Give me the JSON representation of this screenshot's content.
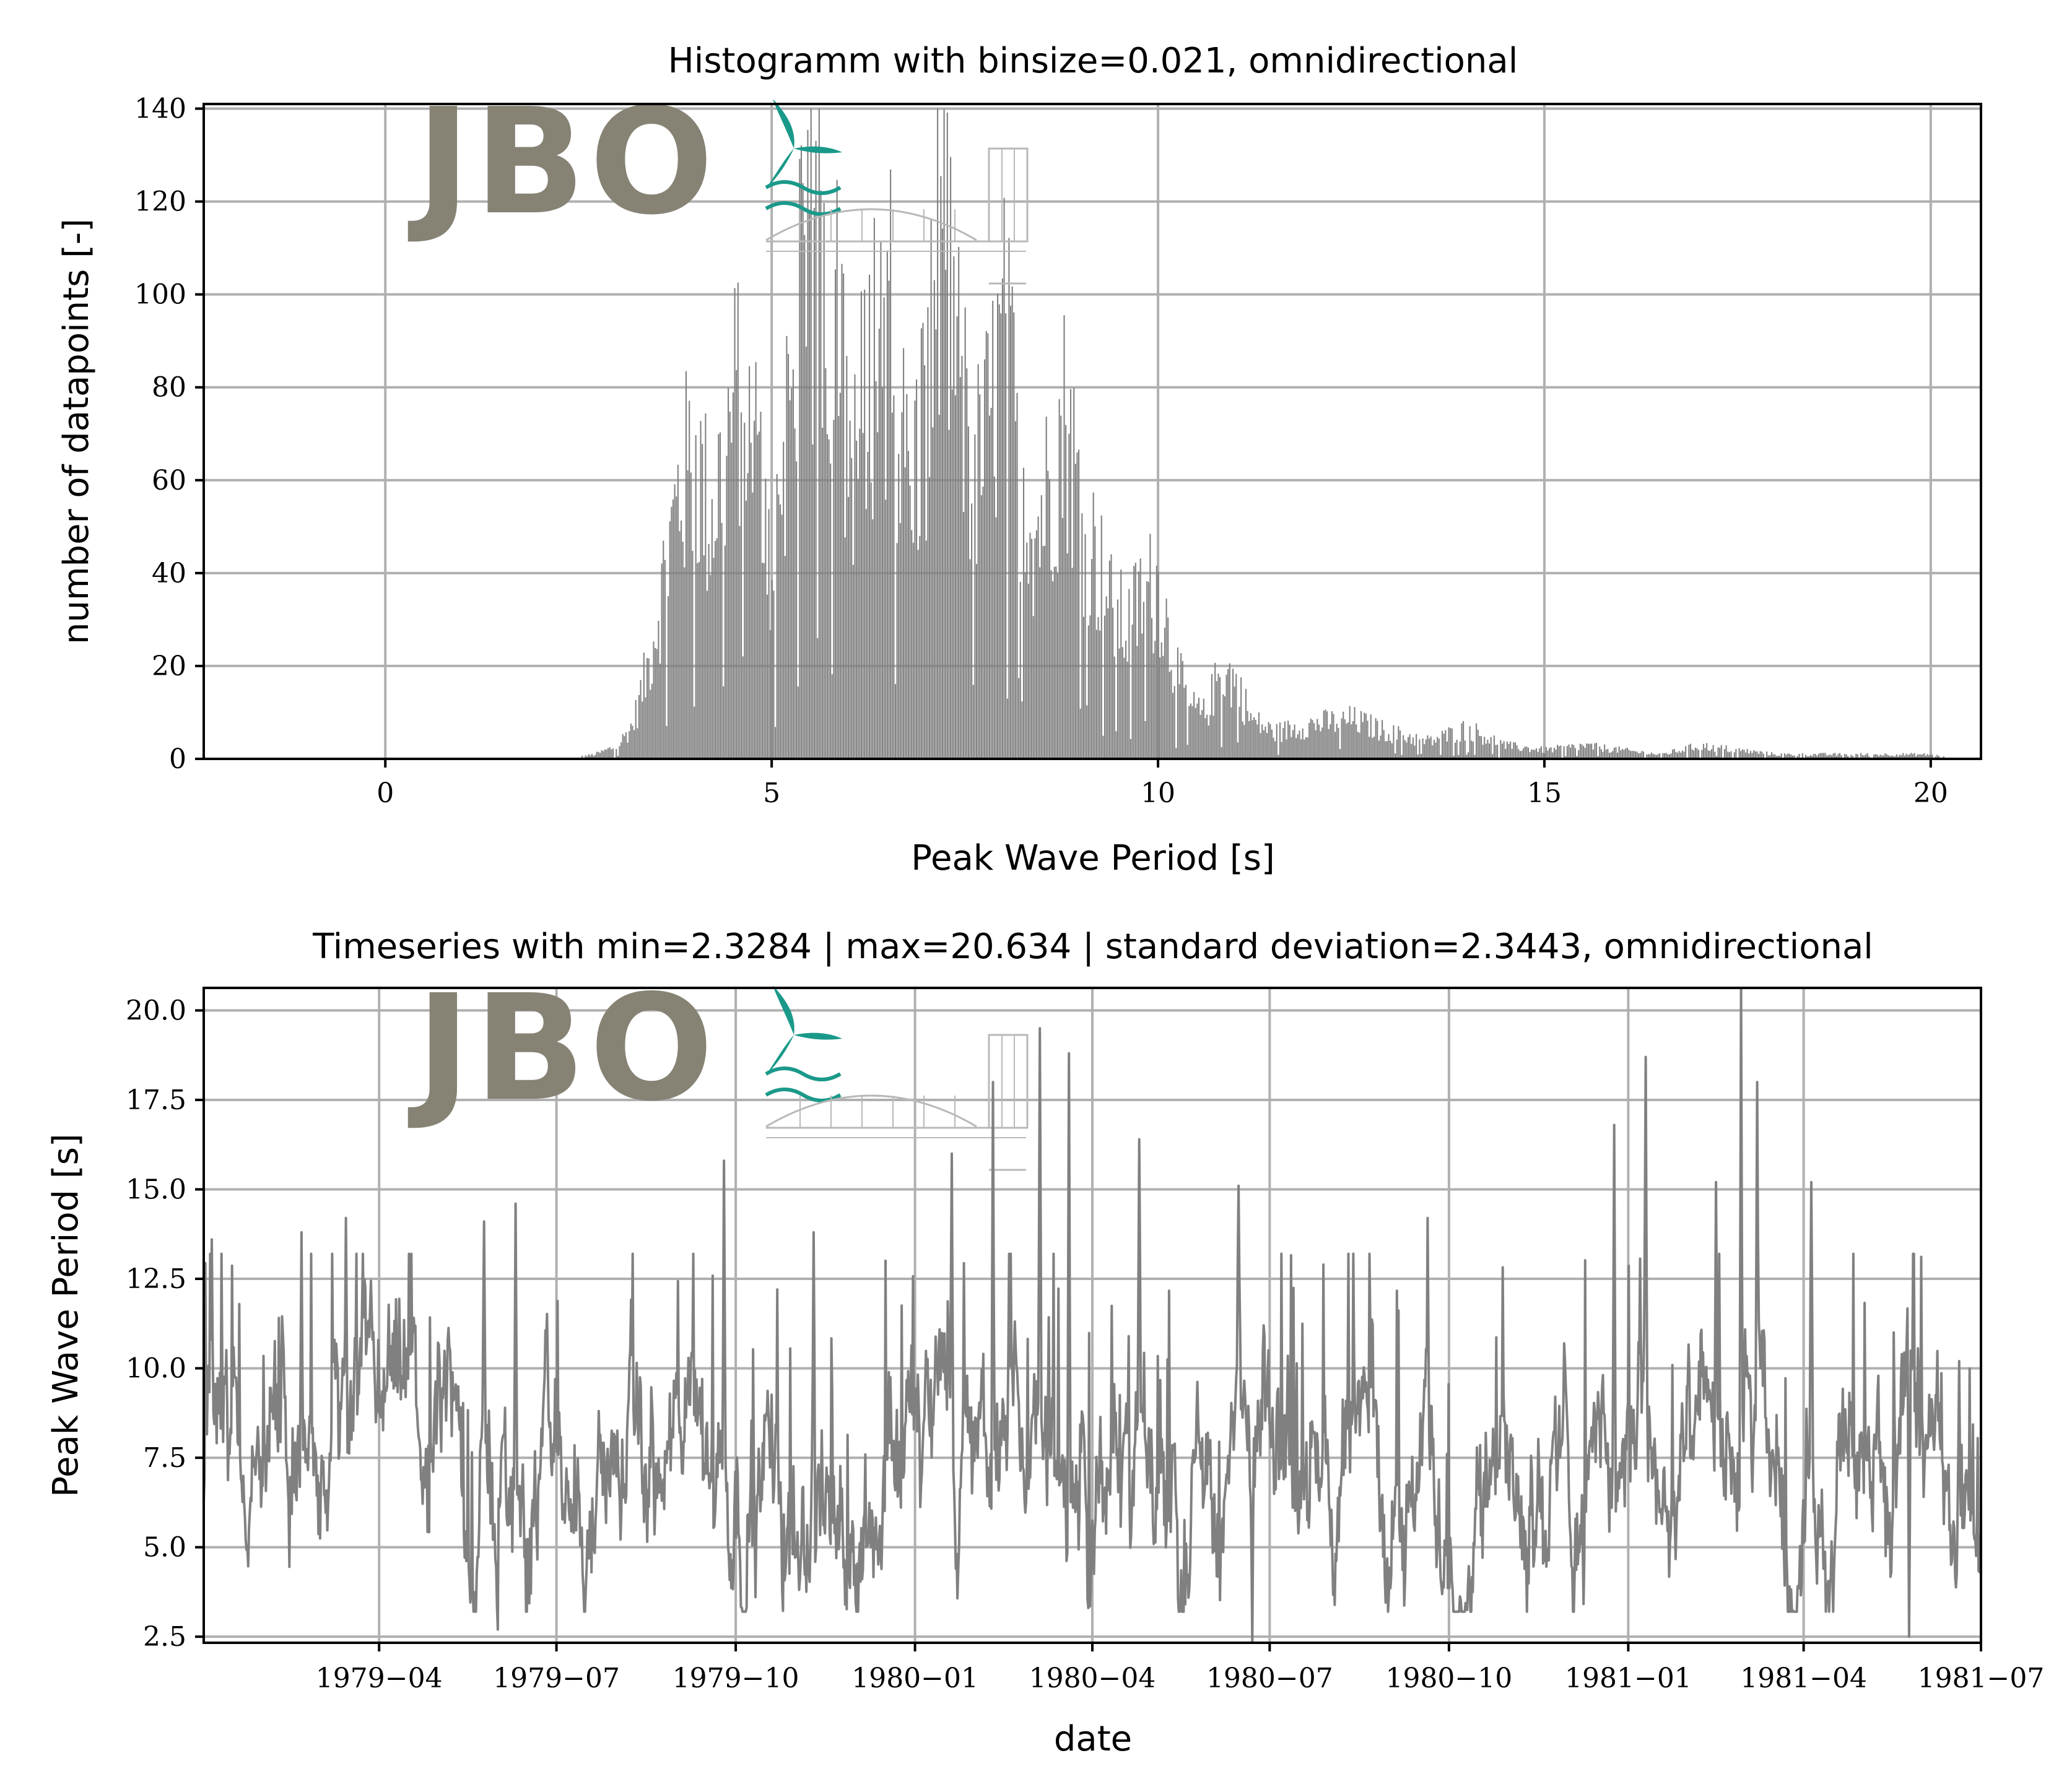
{
  "figure": {
    "background": "#ffffff",
    "series_color": "#808080"
  },
  "logo": {
    "text": "JBO",
    "text_color": "#868274",
    "accent_color": "#1a998a",
    "line_color": "#b8b8b8"
  },
  "chart_data": [
    {
      "type": "bar",
      "title": "Histogramm with binsize=0.021, omnidirectional",
      "xlabel": "Peak Wave Period [s]",
      "ylabel": "number of datapoints [-]",
      "xlim": [
        -2.35,
        20.65
      ],
      "ylim": [
        0,
        141
      ],
      "xticks": [
        0,
        5,
        10,
        15,
        20
      ],
      "xtick_labels": [
        "0",
        "5",
        "10",
        "15",
        "20"
      ],
      "yticks": [
        0,
        20,
        40,
        60,
        80,
        100,
        120,
        140
      ],
      "ytick_labels": [
        "0",
        "20",
        "40",
        "60",
        "80",
        "100",
        "120",
        "140"
      ],
      "grid": true,
      "binsize": 0.021,
      "color": "#808080",
      "envelope": {
        "x": [
          2.33,
          2.7,
          3.0,
          3.2,
          3.4,
          3.6,
          3.8,
          4.0,
          4.2,
          4.4,
          4.6,
          4.8,
          5.0,
          5.2,
          5.4,
          5.6,
          5.8,
          6.0,
          6.2,
          6.4,
          6.6,
          6.8,
          7.0,
          7.2,
          7.4,
          7.6,
          7.8,
          8.0,
          8.2,
          8.4,
          8.6,
          8.8,
          9.0,
          9.2,
          9.4,
          9.6,
          9.8,
          10.0,
          10.2,
          10.4,
          10.6,
          10.8,
          11.0,
          11.2,
          11.5,
          12.0,
          12.5,
          13.0,
          13.5,
          14.0,
          14.5,
          15.0,
          15.5,
          16.0,
          16.5,
          17.0,
          17.5,
          18.0,
          18.5,
          19.0,
          19.5,
          20.0,
          20.3
        ],
        "y": [
          0,
          1,
          3,
          8,
          22,
          42,
          62,
          70,
          55,
          72,
          88,
          68,
          42,
          82,
          106,
          120,
          104,
          70,
          82,
          104,
          84,
          62,
          84,
          124,
          92,
          64,
          76,
          96,
          70,
          52,
          64,
          80,
          56,
          46,
          34,
          30,
          38,
          40,
          22,
          12,
          10,
          20,
          18,
          9,
          6,
          8,
          9,
          6,
          4,
          7,
          3,
          2,
          3,
          2,
          1,
          3,
          2,
          1,
          1,
          1,
          1,
          1,
          0
        ]
      },
      "peak_count": 140,
      "support": [
        2.33,
        20.63
      ]
    },
    {
      "type": "line",
      "title": "Timeseries with min=2.3284 | max=20.634 | standard deviation=2.3443, omnidirectional",
      "xlabel": "date",
      "ylabel": "Peak Wave Period [s]",
      "xlim": [
        "1979-01-01",
        "1981-07-01"
      ],
      "ylim": [
        2.33,
        20.63
      ],
      "xticks": [
        "1979-04-01",
        "1979-07-01",
        "1979-10-01",
        "1980-01-01",
        "1980-04-01",
        "1980-07-01",
        "1980-10-01",
        "1981-01-01",
        "1981-04-01",
        "1981-07-01"
      ],
      "xtick_labels": [
        "1979−04",
        "1979−07",
        "1979−10",
        "1980−01",
        "1980−04",
        "1980−07",
        "1980−10",
        "1981−01",
        "1981−04",
        "1981−07"
      ],
      "yticks": [
        2.5,
        5.0,
        7.5,
        10.0,
        12.5,
        15.0,
        17.5,
        20.0
      ],
      "ytick_labels": [
        "2.5",
        "5.0",
        "7.5",
        "10.0",
        "12.5",
        "15.0",
        "17.5",
        "20.0"
      ],
      "grid": true,
      "color": "#808080",
      "stats": {
        "min": 2.3284,
        "max": 20.634,
        "std": 2.3443
      },
      "notable_peaks": [
        {
          "date": "1979-01-05",
          "value": 13.6
        },
        {
          "date": "1979-02-20",
          "value": 13.8
        },
        {
          "date": "1979-03-15",
          "value": 14.2
        },
        {
          "date": "1979-05-25",
          "value": 14.1
        },
        {
          "date": "1979-06-10",
          "value": 14.6
        },
        {
          "date": "1979-09-25",
          "value": 15.8
        },
        {
          "date": "1979-11-10",
          "value": 13.8
        },
        {
          "date": "1980-01-20",
          "value": 16.0
        },
        {
          "date": "1980-02-10",
          "value": 18.0
        },
        {
          "date": "1980-03-05",
          "value": 19.5
        },
        {
          "date": "1980-03-20",
          "value": 18.8
        },
        {
          "date": "1980-04-25",
          "value": 16.4
        },
        {
          "date": "1980-06-15",
          "value": 15.1
        },
        {
          "date": "1980-09-20",
          "value": 14.2
        },
        {
          "date": "1980-12-25",
          "value": 16.8
        },
        {
          "date": "1981-01-10",
          "value": 18.7
        },
        {
          "date": "1981-02-15",
          "value": 15.2
        },
        {
          "date": "1981-02-28",
          "value": 20.634
        },
        {
          "date": "1981-03-08",
          "value": 18.0
        },
        {
          "date": "1981-04-05",
          "value": 15.2
        },
        {
          "date": "1981-06-20",
          "value": 10.2
        }
      ],
      "lows": [
        {
          "date": "1980-06-22",
          "value": 2.3284
        },
        {
          "date": "1979-06-01",
          "value": 2.7
        },
        {
          "date": "1981-05-25",
          "value": 2.5
        }
      ],
      "baseline_mean": 7.0
    }
  ]
}
